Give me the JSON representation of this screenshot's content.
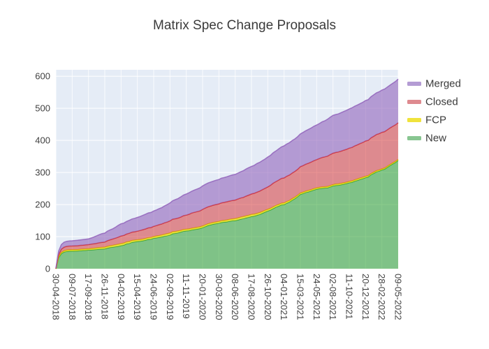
{
  "title": "Matrix Spec Change Proposals",
  "colors": {
    "plot_background": "#e5ecf6",
    "gridline": "#ffffff",
    "title_text": "#3b3b3b",
    "tick_text": "#3f3f3f"
  },
  "legend": {
    "items": [
      {
        "label": "Merged",
        "swatch": "#b49cd4"
      },
      {
        "label": "Closed",
        "swatch": "#de8a8f"
      },
      {
        "label": "FCP",
        "swatch": "#f0e33c"
      },
      {
        "label": "New",
        "swatch": "#88c691"
      }
    ]
  },
  "chart_data": {
    "type": "area",
    "stacked": true,
    "title": "Matrix Spec Change Proposals",
    "xlabel": "",
    "ylabel": "",
    "ylim": [
      0,
      620
    ],
    "yticks": [
      0,
      100,
      200,
      300,
      400,
      500,
      600
    ],
    "grid": true,
    "legend_position": "right",
    "x": [
      "30-04-2018",
      "09-07-2018",
      "17-09-2018",
      "26-11-2018",
      "04-02-2019",
      "15-04-2019",
      "24-06-2019",
      "02-09-2019",
      "11-11-2019",
      "20-01-2020",
      "30-03-2020",
      "08-06-2020",
      "17-08-2020",
      "26-10-2020",
      "04-01-2021",
      "15-03-2021",
      "24-05-2021",
      "02-08-2021",
      "11-10-2021",
      "20-12-2021",
      "28-02-2022",
      "09-05-2022"
    ],
    "series": [
      {
        "name": "New",
        "line": "#2ca02c",
        "fill": "rgba(44,160,44,0.55)",
        "values": [
          0,
          55,
          58,
          62,
          72,
          85,
          95,
          105,
          118,
          128,
          142,
          150,
          163,
          180,
          200,
          232,
          248,
          258,
          268,
          284,
          308,
          338
        ]
      },
      {
        "name": "FCP",
        "line": "#d9cf00",
        "fill": "rgba(240,224,30,0.78)",
        "values": [
          0,
          4,
          4,
          5,
          6,
          5,
          5,
          6,
          5,
          5,
          5,
          6,
          6,
          5,
          5,
          4,
          4,
          4,
          4,
          4,
          3,
          3
        ]
      },
      {
        "name": "Closed",
        "line": "#d62728",
        "fill": "rgba(214,39,40,0.5)",
        "values": [
          0,
          12,
          13,
          16,
          24,
          27,
          32,
          38,
          44,
          52,
          55,
          58,
          64,
          70,
          78,
          82,
          88,
          98,
          104,
          110,
          114,
          114
        ]
      },
      {
        "name": "Merged",
        "line": "#9467bd",
        "fill": "rgba(148,103,189,0.62)",
        "values": [
          2,
          16,
          18,
          28,
          38,
          43,
          48,
          56,
          66,
          73,
          76,
          80,
          86,
          93,
          100,
          102,
          108,
          118,
          122,
          126,
          132,
          136
        ]
      }
    ]
  }
}
